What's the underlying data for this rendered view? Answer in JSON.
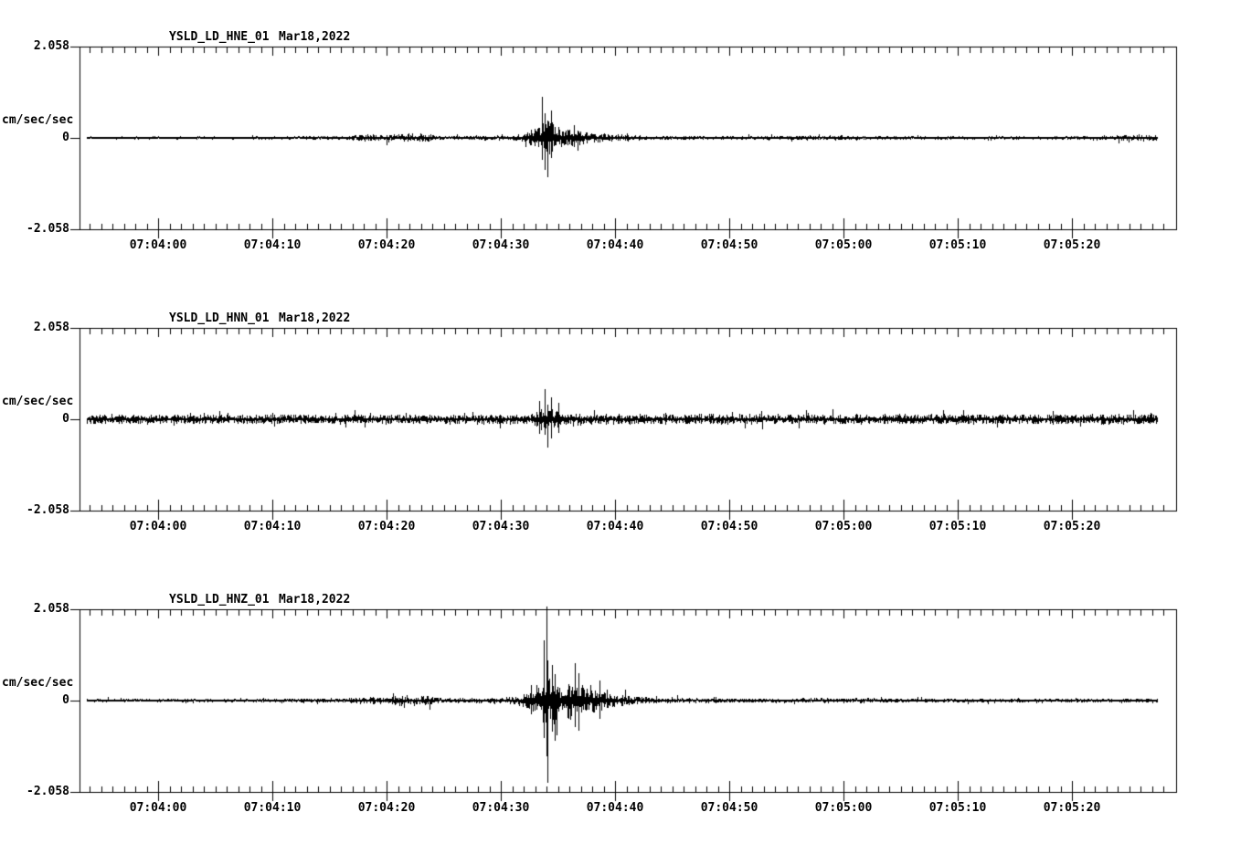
{
  "colors": {
    "foreground": "#000000",
    "background": "#ffffff"
  },
  "time_axis": {
    "t_start_s": 53.1,
    "t_end_s": 149.1,
    "reference": "seconds after 07:03:00",
    "minor_tick_interval_s": 1,
    "major_tick_interval_s": 10
  },
  "x_ticks": [
    {
      "t": 60,
      "label": "07:04:00"
    },
    {
      "t": 70,
      "label": "07:04:10"
    },
    {
      "t": 80,
      "label": "07:04:20"
    },
    {
      "t": 90,
      "label": "07:04:30"
    },
    {
      "t": 100,
      "label": "07:04:40"
    },
    {
      "t": 110,
      "label": "07:04:50"
    },
    {
      "t": 120,
      "label": "07:05:00"
    },
    {
      "t": 130,
      "label": "07:05:10"
    },
    {
      "t": 140,
      "label": "07:05:20"
    }
  ],
  "chart_data": [
    {
      "type": "line",
      "station": "YSLD_LD_HNE_01",
      "date": "Mar18,2022",
      "ylabel": "cm/sec/sec",
      "y_top_label": "2.058",
      "y_zero_label": "0",
      "y_bottom_label": "-2.058",
      "ylim": [
        -2.058,
        2.058
      ],
      "xlim_labels": [
        "07:03:53",
        "07:05:29"
      ],
      "grid": false,
      "trace": {
        "t_first_s": 53.7,
        "t_last_s": 147.4,
        "seed": 101,
        "envelope": [
          [
            53.7,
            0.035
          ],
          [
            70,
            0.035
          ],
          [
            76.5,
            0.05
          ],
          [
            78.5,
            0.09
          ],
          [
            79.8,
            0.05
          ],
          [
            80.8,
            0.1
          ],
          [
            83.5,
            0.1
          ],
          [
            84.5,
            0.045
          ],
          [
            87,
            0.05
          ],
          [
            90,
            0.06
          ],
          [
            92,
            0.09
          ],
          [
            93.2,
            0.28
          ],
          [
            93.8,
            0.4
          ],
          [
            94.8,
            0.35
          ],
          [
            95.5,
            0.17
          ],
          [
            96.3,
            0.22
          ],
          [
            97.5,
            0.13
          ],
          [
            99,
            0.1
          ],
          [
            101,
            0.07
          ],
          [
            104,
            0.05
          ],
          [
            108,
            0.042
          ],
          [
            118,
            0.05
          ],
          [
            119.5,
            0.06
          ],
          [
            121,
            0.045
          ],
          [
            130,
            0.04
          ],
          [
            140,
            0.04
          ],
          [
            144.5,
            0.065
          ],
          [
            147.4,
            0.07
          ]
        ],
        "spikes": [
          [
            80.0,
            0.06,
            0.17
          ],
          [
            93.55,
            0.93,
            0.5
          ],
          [
            93.85,
            0.55,
            0.72
          ],
          [
            94.1,
            0.4,
            0.88
          ],
          [
            94.35,
            0.62,
            0.45
          ],
          [
            96.4,
            0.28,
            0.22
          ]
        ]
      }
    },
    {
      "type": "line",
      "station": "YSLD_LD_HNN_01",
      "date": "Mar18,2022",
      "ylabel": "cm/sec/sec",
      "y_top_label": "2.058",
      "y_zero_label": "0",
      "y_bottom_label": "-2.058",
      "ylim": [
        -2.058,
        2.058
      ],
      "xlim_labels": [
        "07:03:53",
        "07:05:29"
      ],
      "grid": false,
      "trace": {
        "t_first_s": 53.7,
        "t_last_s": 147.4,
        "seed": 202,
        "envelope": [
          [
            53.7,
            0.11
          ],
          [
            75,
            0.11
          ],
          [
            88,
            0.105
          ],
          [
            92.5,
            0.13
          ],
          [
            93.4,
            0.26
          ],
          [
            94.6,
            0.27
          ],
          [
            95.6,
            0.16
          ],
          [
            98,
            0.135
          ],
          [
            102,
            0.12
          ],
          [
            120,
            0.115
          ],
          [
            147.4,
            0.12
          ]
        ],
        "spikes": [
          [
            93.3,
            0.42,
            0.33
          ],
          [
            93.8,
            0.67,
            0.35
          ],
          [
            94.05,
            0.33,
            0.63
          ],
          [
            94.35,
            0.5,
            0.42
          ],
          [
            95.0,
            0.38,
            0.3
          ]
        ]
      }
    },
    {
      "type": "line",
      "station": "YSLD_LD_HNZ_01",
      "date": "Mar18,2022",
      "ylabel": "cm/sec/sec",
      "y_top_label": "2.058",
      "y_zero_label": "0",
      "y_bottom_label": "-2.058",
      "ylim": [
        -2.058,
        2.058
      ],
      "xlim_labels": [
        "07:03:53",
        "07:05:29"
      ],
      "grid": false,
      "trace": {
        "t_first_s": 53.7,
        "t_last_s": 147.4,
        "seed": 303,
        "envelope": [
          [
            53.7,
            0.04
          ],
          [
            70,
            0.04
          ],
          [
            76.5,
            0.055
          ],
          [
            78.3,
            0.1
          ],
          [
            79.8,
            0.07
          ],
          [
            81,
            0.12
          ],
          [
            83.5,
            0.12
          ],
          [
            85,
            0.055
          ],
          [
            88.5,
            0.06
          ],
          [
            90.5,
            0.08
          ],
          [
            92,
            0.15
          ],
          [
            93,
            0.35
          ],
          [
            93.6,
            0.55
          ],
          [
            94.6,
            0.58
          ],
          [
            95.3,
            0.3
          ],
          [
            96.1,
            0.45
          ],
          [
            96.9,
            0.45
          ],
          [
            97.7,
            0.27
          ],
          [
            98.4,
            0.3
          ],
          [
            99.5,
            0.18
          ],
          [
            101,
            0.12
          ],
          [
            102.5,
            0.09
          ],
          [
            104.5,
            0.055
          ],
          [
            106,
            0.07
          ],
          [
            107.5,
            0.05
          ],
          [
            112,
            0.05
          ],
          [
            118,
            0.06
          ],
          [
            120,
            0.05
          ],
          [
            122,
            0.06
          ],
          [
            124,
            0.05
          ],
          [
            128,
            0.045
          ],
          [
            135,
            0.05
          ],
          [
            141,
            0.045
          ],
          [
            147.4,
            0.05
          ]
        ],
        "spikes": [
          [
            92.6,
            0.35,
            0.3
          ],
          [
            93.7,
            1.35,
            0.85
          ],
          [
            93.95,
            2.12,
            1.25
          ],
          [
            94.1,
            0.9,
            1.85
          ],
          [
            94.45,
            0.8,
            0.7
          ],
          [
            94.7,
            0.6,
            0.9
          ],
          [
            96.45,
            0.85,
            0.6
          ],
          [
            96.8,
            0.62,
            0.68
          ],
          [
            98.6,
            0.45,
            0.42
          ]
        ]
      }
    }
  ]
}
